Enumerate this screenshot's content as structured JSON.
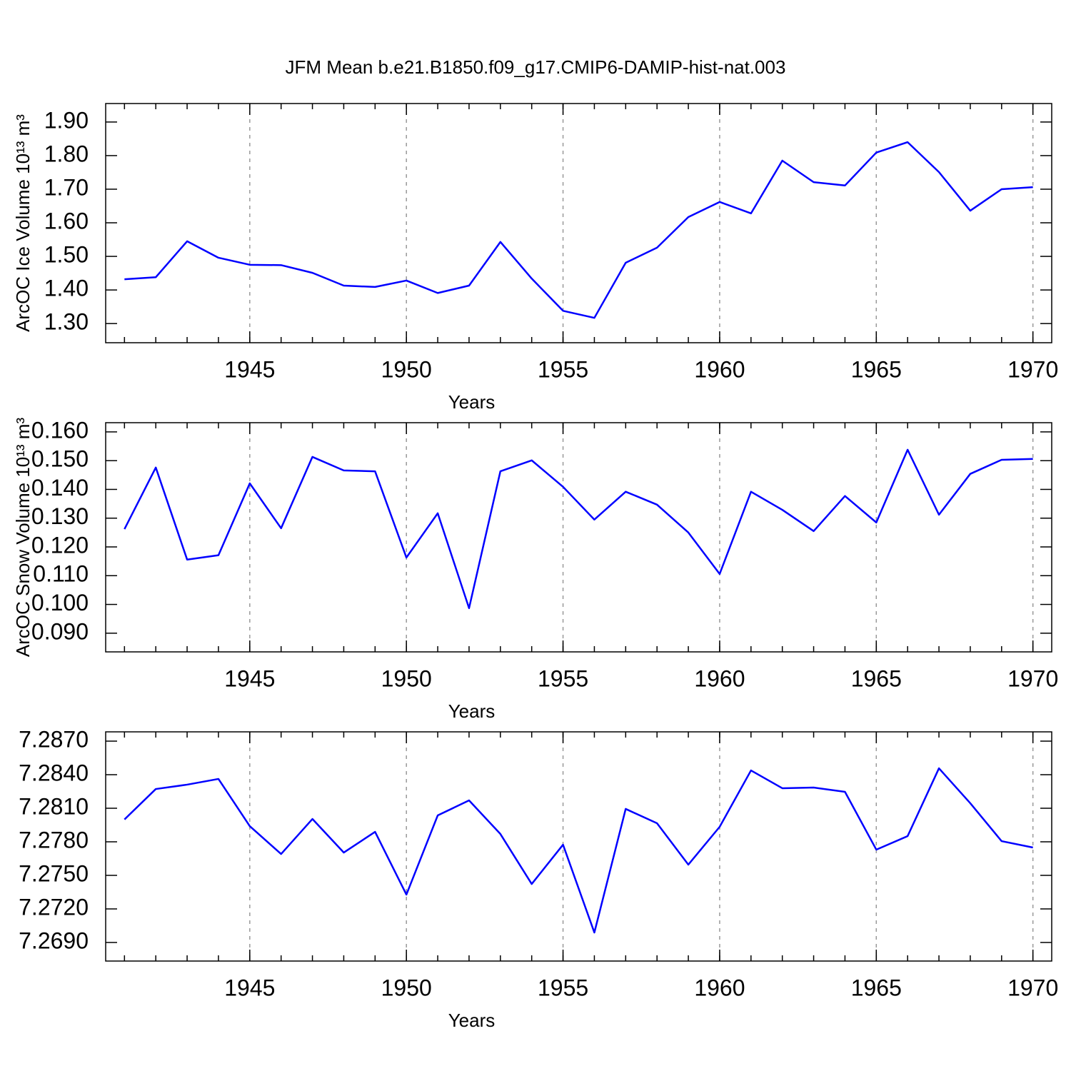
{
  "title": "JFM Mean b.e21.B1850.f09_g17.CMIP6-DAMIP-hist-nat.003",
  "chart_data": [
    {
      "type": "line",
      "xlabel": "Years",
      "ylabel": "ArcOC Ice Volume 10¹³ m³",
      "x": [
        1941,
        1942,
        1943,
        1944,
        1945,
        1946,
        1947,
        1948,
        1949,
        1950,
        1951,
        1952,
        1953,
        1954,
        1955,
        1956,
        1957,
        1958,
        1959,
        1960,
        1961,
        1962,
        1963,
        1964,
        1965,
        1966,
        1967,
        1968,
        1969,
        1970
      ],
      "series": [
        {
          "color": "#0000ff",
          "values": [
            1.432,
            1.438,
            1.545,
            1.496,
            1.475,
            1.474,
            1.451,
            1.413,
            1.409,
            1.428,
            1.391,
            1.413,
            1.543,
            1.434,
            1.338,
            1.317,
            1.481,
            1.526,
            1.617,
            1.662,
            1.628,
            1.785,
            1.721,
            1.711,
            1.809,
            1.84,
            1.751,
            1.636,
            1.7,
            1.706
          ]
        }
      ],
      "xlim": [
        1940.4,
        1970.6
      ],
      "xticks": [
        1945,
        1950,
        1955,
        1960,
        1965,
        1970
      ],
      "ylim": [
        1.243,
        1.955
      ],
      "yticks": [
        {
          "value": 1.3,
          "label": "1.30"
        },
        {
          "value": 1.4,
          "label": "1.40"
        },
        {
          "value": 1.5,
          "label": "1.50"
        },
        {
          "value": 1.6,
          "label": "1.60"
        },
        {
          "value": 1.7,
          "label": "1.70"
        },
        {
          "value": 1.8,
          "label": "1.80"
        },
        {
          "value": 1.9,
          "label": "1.90"
        }
      ],
      "xgrid": true
    },
    {
      "type": "line",
      "xlabel": "Years",
      "ylabel": "ArcOC Snow Volume 10¹³ m³",
      "x": [
        1941,
        1942,
        1943,
        1944,
        1945,
        1946,
        1947,
        1948,
        1949,
        1950,
        1951,
        1952,
        1953,
        1954,
        1955,
        1956,
        1957,
        1958,
        1959,
        1960,
        1961,
        1962,
        1963,
        1964,
        1965,
        1966,
        1967,
        1968,
        1969,
        1970
      ],
      "series": [
        {
          "color": "#0000ff",
          "values": [
            0.1262,
            0.1476,
            0.1156,
            0.1171,
            0.1421,
            0.1265,
            0.1513,
            0.1466,
            0.1463,
            0.1163,
            0.1317,
            0.0987,
            0.1463,
            0.1501,
            0.1409,
            0.1295,
            0.1392,
            0.1347,
            0.125,
            0.1106,
            0.1392,
            0.1329,
            0.1255,
            0.1377,
            0.1285,
            0.1538,
            0.1312,
            0.1454,
            0.1503,
            0.1506
          ]
        }
      ],
      "xlim": [
        1940.4,
        1970.6
      ],
      "xticks": [
        1945,
        1950,
        1955,
        1960,
        1965,
        1970
      ],
      "ylim": [
        0.0835,
        0.1632
      ],
      "yticks": [
        {
          "value": 0.09,
          "label": "0.090"
        },
        {
          "value": 0.1,
          "label": "0.100"
        },
        {
          "value": 0.11,
          "label": "0.110"
        },
        {
          "value": 0.12,
          "label": "0.120"
        },
        {
          "value": 0.13,
          "label": "0.130"
        },
        {
          "value": 0.14,
          "label": "0.140"
        },
        {
          "value": 0.15,
          "label": "0.150"
        },
        {
          "value": 0.16,
          "label": "0.160"
        }
      ],
      "xgrid": true
    },
    {
      "type": "line",
      "xlabel": "Years",
      "x": [
        1941,
        1942,
        1943,
        1944,
        1945,
        1946,
        1947,
        1948,
        1949,
        1950,
        1951,
        1952,
        1953,
        1954,
        1955,
        1956,
        1957,
        1958,
        1959,
        1960,
        1961,
        1962,
        1963,
        1964,
        1965,
        1966,
        1967,
        1968,
        1969,
        1970
      ],
      "series": [
        {
          "color": "#0000ff",
          "values": [
            7.28,
            7.28272,
            7.28311,
            7.28362,
            7.2794,
            7.27691,
            7.28004,
            7.27704,
            7.27889,
            7.27328,
            7.28036,
            7.2817,
            7.2787,
            7.27423,
            7.27774,
            7.26989,
            7.28094,
            7.27966,
            7.27596,
            7.27934,
            7.28438,
            7.28279,
            7.28285,
            7.28247,
            7.2773,
            7.27851,
            7.28457,
            7.28145,
            7.27806,
            7.27749
          ]
        }
      ],
      "xlim": [
        1940.4,
        1970.6
      ],
      "xticks": [
        1945,
        1950,
        1955,
        1960,
        1965,
        1970
      ],
      "ylim": [
        7.26734,
        7.28783
      ],
      "yticks": [
        {
          "value": 7.269,
          "label": "7.2690"
        },
        {
          "value": 7.272,
          "label": "7.2720"
        },
        {
          "value": 7.275,
          "label": "7.2750"
        },
        {
          "value": 7.278,
          "label": "7.2780"
        },
        {
          "value": 7.281,
          "label": "7.2810"
        },
        {
          "value": 7.284,
          "label": "7.2840"
        },
        {
          "value": 7.287,
          "label": "7.2870"
        }
      ],
      "xgrid": true
    }
  ]
}
